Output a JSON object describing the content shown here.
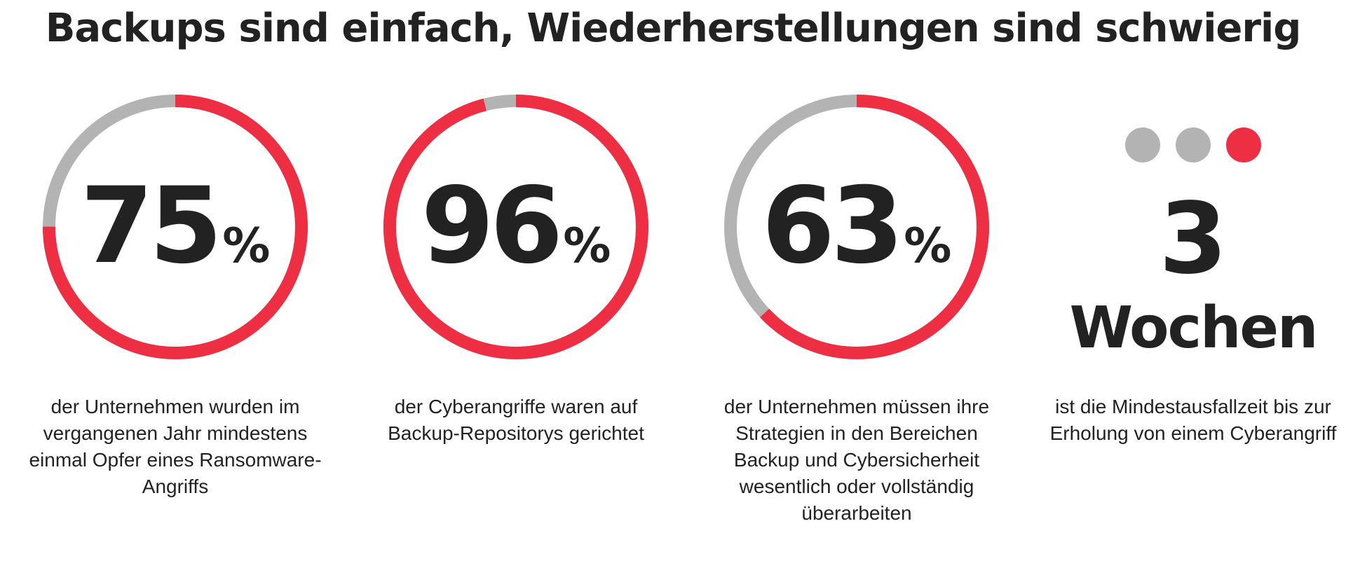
{
  "colors": {
    "accent": "#ee2e43",
    "track": "#b3b3b3",
    "text": "#222222"
  },
  "chart_data": {
    "type": "pie",
    "title": "Backups sind einfach, Wiederherstellungen sind schwierig",
    "rings": [
      {
        "value": 75,
        "value_text": "75",
        "unit": "%",
        "description": "der Unternehmen wurden im vergangenen Jahr mindestens einmal Opfer eines Ransomware-Angriffs"
      },
      {
        "value": 96,
        "value_text": "96",
        "unit": "%",
        "description": "der Cyberangriffe waren auf Backup-Repositorys gerichtet"
      },
      {
        "value": 63,
        "value_text": "63",
        "unit": "%",
        "description": "der Unternehmen müssen ihre Strategien in den Bereichen Backup und Cybersicherheit wesentlich oder vollständig überarbeiten"
      }
    ],
    "callout": {
      "number": "3",
      "unit": "Wochen",
      "description": "ist die Mindestausfallzeit bis zur Erholung von einem Cyberangriff",
      "dots": [
        {
          "color": "#b3b3b3"
        },
        {
          "color": "#b3b3b3"
        },
        {
          "color": "#ee2e43"
        }
      ]
    }
  }
}
